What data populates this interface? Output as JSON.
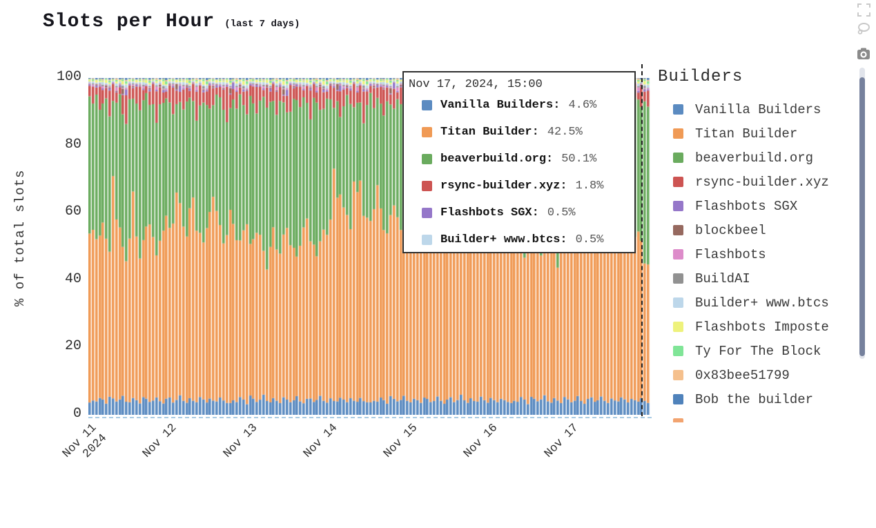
{
  "title": {
    "main": "Slots per Hour",
    "sub": "(last 7 days)"
  },
  "toolbar": {
    "icons": [
      "box-select-icon",
      "lasso-select-icon",
      "camera-icon"
    ],
    "icon_color_light": "#c9c9c9",
    "icon_color_dark": "#8a8a8a"
  },
  "tooltip": {
    "header": "Nov 17, 2024, 15:00",
    "rows": [
      {
        "name": "Vanilla Builders:",
        "value": "4.6%",
        "color": "#5b8bc1"
      },
      {
        "name": "Titan Builder:",
        "value": "42.5%",
        "color": "#f09a55"
      },
      {
        "name": "beaverbuild.org:",
        "value": "50.1%",
        "color": "#6aab5e"
      },
      {
        "name": "rsync-builder.xyz:",
        "value": "1.8%",
        "color": "#cd5452"
      },
      {
        "name": "Flashbots SGX:",
        "value": "0.5%",
        "color": "#9577c9"
      },
      {
        "name": "Builder+ www.btcs:",
        "value": "0.5%",
        "color": "#bdd7ea"
      }
    ]
  },
  "legend": {
    "title": "Builders",
    "items": [
      {
        "label": "Vanilla Builders",
        "color": "#5b8bc1"
      },
      {
        "label": "Titan Builder",
        "color": "#f09a55"
      },
      {
        "label": "beaverbuild.org",
        "color": "#6aab5e"
      },
      {
        "label": "rsync-builder.xyz",
        "color": "#cd5452"
      },
      {
        "label": "Flashbots SGX",
        "color": "#9577c9"
      },
      {
        "label": "blockbeel",
        "color": "#96695f"
      },
      {
        "label": "Flashbots",
        "color": "#dd8cca"
      },
      {
        "label": "BuildAI",
        "color": "#919191"
      },
      {
        "label": "Builder+ www.btcs",
        "color": "#bdd7ea"
      },
      {
        "label": "Flashbots Imposte",
        "color": "#eef27c"
      },
      {
        "label": "Ty For The Block",
        "color": "#80e597"
      },
      {
        "label": "0x83bee51799",
        "color": "#f5c08d"
      },
      {
        "label": "Bob the builder",
        "color": "#4f82bb"
      },
      {
        "label": "",
        "color": "#f2a470"
      }
    ]
  },
  "chart_data": {
    "type": "bar",
    "stacked": true,
    "normalize_to": 100,
    "bars": 168,
    "x_unit": "hour",
    "x_tick_positions": [
      0,
      24,
      48,
      72,
      96,
      120,
      144
    ],
    "x_tick_labels": [
      "Nov 11\n2024",
      "Nov 12",
      "Nov 13",
      "Nov 14",
      "Nov 15",
      "Nov 16",
      "Nov 17"
    ],
    "ylabel": "% of total slots",
    "ylim": [
      0,
      100
    ],
    "y_ticks": [
      100,
      80,
      60,
      40,
      20,
      0
    ],
    "legend_position": "right",
    "grid": false,
    "series": [
      {
        "name": "Vanilla Builders",
        "color": "#5b8bc1",
        "values": [
          3.5,
          4.2,
          3.8,
          5.1,
          4.5,
          3.2,
          5.6,
          4.8,
          3.9,
          4.4,
          5.9,
          4.1,
          3.6,
          4.9,
          4.3,
          3.4,
          5.2,
          4.6,
          3.8,
          4.2,
          5.5,
          4.0,
          3.3,
          4.7,
          5.1,
          3.7,
          4.4,
          5.8,
          4.2,
          3.5,
          4.8,
          4.1,
          3.9,
          5.3,
          4.5,
          3.6,
          4.9,
          4.2,
          3.8,
          5.0,
          4.3,
          3.7
        ]
      },
      {
        "name": "Titan Builder",
        "color": "#f09a55",
        "values": [
          48,
          50,
          46,
          49,
          52,
          47,
          45,
          65,
          53,
          49,
          46,
          44,
          47,
          60,
          48,
          43,
          46,
          49,
          52,
          48,
          45,
          47,
          50,
          53,
          50,
          54,
          61,
          57,
          52,
          48,
          55,
          59,
          53,
          49,
          46,
          51,
          56,
          60,
          54,
          50,
          47,
          52,
          57,
          51,
          48,
          45,
          50,
          54,
          44,
          47,
          51,
          48,
          42,
          39,
          45,
          50,
          46,
          43,
          48,
          52,
          47,
          44,
          41,
          46,
          50,
          53,
          49,
          45,
          42,
          47,
          51,
          48,
          52,
          69,
          59,
          63,
          57,
          53,
          50,
          65,
          61,
          64,
          58,
          54,
          51,
          57,
          62,
          56,
          52,
          49,
          54,
          58,
          53,
          50,
          47,
          52,
          58,
          62,
          56,
          52,
          57,
          61,
          55,
          51,
          48,
          53,
          58,
          54,
          50,
          47,
          52,
          56,
          61,
          57,
          53,
          50,
          55,
          59,
          54,
          51,
          46,
          49,
          53,
          50,
          47,
          44,
          48,
          52,
          49,
          45,
          42,
          47,
          51,
          48,
          44,
          41,
          46,
          50,
          47,
          43,
          40,
          45,
          49,
          52,
          50,
          53,
          57,
          54,
          50,
          47,
          52,
          56,
          53,
          49,
          46,
          51,
          55,
          52,
          48,
          45,
          50,
          54,
          51,
          47,
          49,
          47,
          42.5,
          43
        ]
      },
      {
        "name": "beaverbuild.org",
        "color": "#6aab5e",
        "values": [
          39,
          37,
          41,
          38,
          35,
          40,
          42,
          22,
          34,
          38,
          41,
          43,
          40,
          27,
          39,
          44,
          41,
          38,
          35,
          39,
          42,
          40,
          37,
          34,
          37,
          33,
          26,
          30,
          35,
          39,
          32,
          28,
          34,
          38,
          41,
          36,
          31,
          27,
          33,
          37,
          40,
          35,
          30,
          36,
          39,
          42,
          37,
          33,
          43,
          40,
          36,
          39,
          45,
          48,
          42,
          37,
          41,
          44,
          39,
          35,
          40,
          43,
          46,
          41,
          37,
          34,
          38,
          42,
          45,
          40,
          36,
          39,
          35,
          18,
          28,
          24,
          30,
          34,
          37,
          22,
          26,
          23,
          29,
          33,
          36,
          30,
          25,
          31,
          35,
          38,
          33,
          29,
          34,
          37,
          40,
          35,
          29,
          25,
          31,
          35,
          30,
          26,
          32,
          36,
          39,
          34,
          29,
          33,
          37,
          40,
          35,
          31,
          26,
          30,
          34,
          37,
          32,
          28,
          33,
          36,
          41,
          38,
          34,
          37,
          40,
          43,
          39,
          35,
          38,
          42,
          45,
          40,
          36,
          39,
          43,
          46,
          41,
          37,
          40,
          44,
          47,
          42,
          38,
          35,
          37,
          34,
          30,
          33,
          37,
          40,
          35,
          31,
          34,
          38,
          41,
          36,
          32,
          35,
          39,
          42,
          37,
          33,
          36,
          40,
          38,
          40,
          50.1,
          49
        ]
      },
      {
        "name": "rsync-builder.xyz",
        "color": "#cd5452",
        "values": [
          3,
          5,
          2,
          7,
          4,
          3,
          8,
          5,
          3,
          2,
          6,
          9,
          4,
          3,
          5,
          7,
          3,
          2,
          4,
          6,
          10,
          5,
          3,
          2,
          5,
          8,
          4,
          3,
          6,
          4,
          2,
          5,
          9,
          6,
          3,
          4,
          7,
          5,
          2,
          3,
          6,
          11,
          4,
          3,
          5,
          2,
          4,
          7,
          3,
          5,
          8,
          4,
          2,
          6,
          3,
          5,
          7,
          4,
          2,
          5,
          8,
          3,
          4,
          6,
          2,
          5,
          9,
          4,
          3,
          7,
          5,
          2,
          4,
          6,
          3,
          8,
          5,
          2,
          4,
          7,
          3,
          5,
          10,
          4,
          2,
          6,
          3,
          5,
          8,
          4,
          3,
          6,
          2,
          5,
          7,
          3,
          4,
          8,
          5,
          2,
          6,
          3,
          5,
          9,
          4,
          2,
          5,
          7,
          3,
          4,
          6,
          2
        ]
      },
      {
        "name": "Flashbots SGX",
        "color": "#9577c9",
        "values": [
          0.4,
          0.2,
          0.6,
          0.3,
          0.5,
          0.2,
          0.7,
          0.4,
          0.2,
          0.5,
          0.3,
          1.8,
          0.4,
          0.3,
          0.6,
          0.2
        ]
      },
      {
        "name": "blockbeel",
        "color": "#96695f",
        "values": [
          0.1,
          0,
          0.3,
          0.1,
          0,
          0.5,
          0.2,
          0,
          0.3,
          0.1,
          1.6,
          0.1,
          0,
          0.4,
          0.1,
          0.2
        ]
      },
      {
        "name": "Flashbots",
        "color": "#dd8cca",
        "values": [
          0.2,
          0.4,
          0.1,
          0.3,
          0.6,
          0.2,
          0.3,
          0.1,
          1.0,
          0.3,
          0.2,
          0.4
        ]
      },
      {
        "name": "BuildAI",
        "color": "#919191",
        "values": [
          0.1,
          0.3,
          0.1,
          0.2,
          0.4,
          0.1,
          0.3,
          0.1,
          0.4,
          0.2,
          0.7,
          0.1
        ]
      },
      {
        "name": "Builder+ www.btcs",
        "color": "#bdd7ea",
        "values": [
          0.4,
          0.6,
          0.3,
          0.5,
          0.8,
          0.4,
          0.5,
          0.3,
          0.7,
          0.5,
          0.4,
          0.9
        ]
      },
      {
        "name": "Flashbots Imposte",
        "color": "#eef27c",
        "values": [
          0.5,
          0.2,
          0.7,
          0.4,
          0.3,
          0.9,
          0.5,
          0.2,
          0.6,
          0.4,
          1.1,
          0.3
        ]
      },
      {
        "name": "Ty For The Block",
        "color": "#80e597",
        "values": [
          0.2,
          0.4,
          0.1,
          0.4,
          0.2,
          0.3,
          0.6,
          0.2,
          0.4,
          0.1,
          0.5,
          0.8
        ]
      },
      {
        "name": "0x83bee51799",
        "color": "#f5c08d",
        "values": [
          0.1,
          0.3,
          0.1,
          0.2,
          0.4,
          0.1,
          0.3,
          0.2,
          0.5,
          0.1,
          0.2,
          0.4
        ]
      },
      {
        "name": "Bob the builder",
        "color": "#4f82bb",
        "values": [
          0.2,
          0.1,
          0.4,
          0.2,
          0.3,
          0.1,
          0.5,
          0.2,
          0.1,
          0.4,
          0.2,
          0.6
        ]
      }
    ]
  }
}
